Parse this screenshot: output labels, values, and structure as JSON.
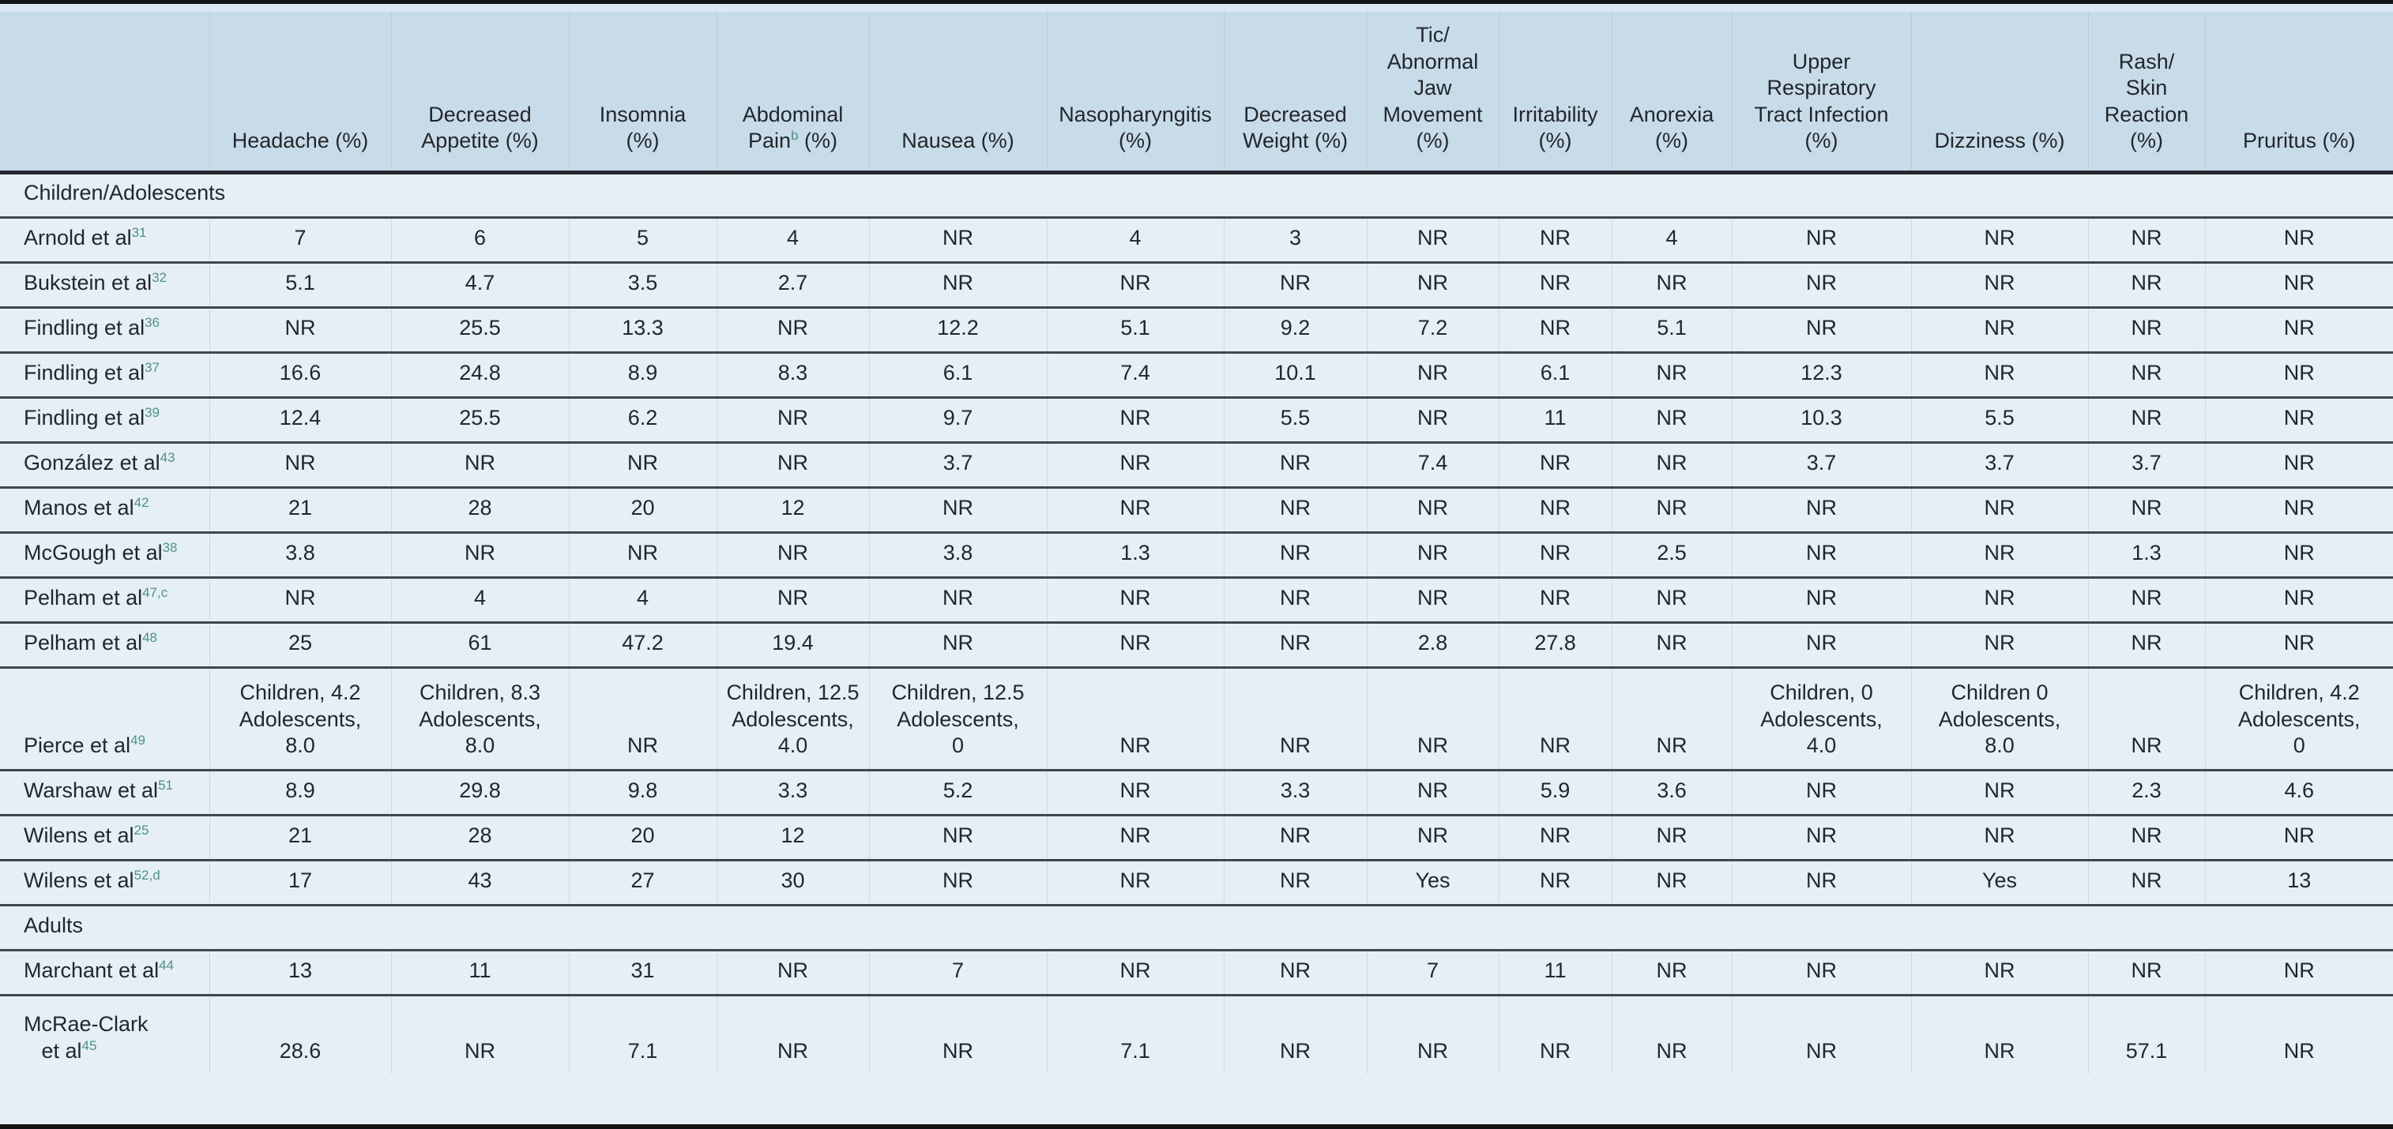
{
  "colors": {
    "header_bg": "#c8dbe9",
    "row_bg": "#e6eff6",
    "strip_bg": "#dae8f2",
    "heavy_rule": "#101417",
    "header_rule": "#23292e",
    "row_rule": "#40474e",
    "vline_header": "#b6cbdb",
    "vline_body": "#cddae5",
    "text_color": "#22272b",
    "superscript_color": "#4f9184"
  },
  "table": {
    "columns": [
      {
        "text": "Headache (%)",
        "sup": "",
        "tail": ""
      },
      {
        "text": "Decreased\nAppetite (%)",
        "sup": "",
        "tail": ""
      },
      {
        "text": "Insomnia\n(%)",
        "sup": "",
        "tail": ""
      },
      {
        "text": "Abdominal\nPain",
        "sup": "b",
        "tail": " (%)"
      },
      {
        "text": "Nausea (%)",
        "sup": "",
        "tail": ""
      },
      {
        "text": "Nasopharyngitis\n(%)",
        "sup": "",
        "tail": ""
      },
      {
        "text": "Decreased\nWeight (%)",
        "sup": "",
        "tail": ""
      },
      {
        "text": "Tic/\nAbnormal\nJaw\nMovement\n(%)",
        "sup": "",
        "tail": ""
      },
      {
        "text": "Irritability\n(%)",
        "sup": "",
        "tail": ""
      },
      {
        "text": "Anorexia\n(%)",
        "sup": "",
        "tail": ""
      },
      {
        "text": "Upper\nRespiratory\nTract Infection\n(%)",
        "sup": "",
        "tail": ""
      },
      {
        "text": "Dizziness (%)",
        "sup": "",
        "tail": ""
      },
      {
        "text": "Rash/\nSkin\nReaction\n(%)",
        "sup": "",
        "tail": ""
      },
      {
        "text": "Pruritus (%)",
        "sup": "",
        "tail": ""
      }
    ],
    "rows": [
      {
        "type": "section",
        "label": "Children/Adolescents"
      },
      {
        "type": "study",
        "study": "Arnold et al",
        "ref": "31",
        "values": [
          "7",
          "6",
          "5",
          "4",
          "NR",
          "4",
          "3",
          "NR",
          "NR",
          "4",
          "NR",
          "NR",
          "NR",
          "NR"
        ]
      },
      {
        "type": "study",
        "study": "Bukstein et al",
        "ref": "32",
        "values": [
          "5.1",
          "4.7",
          "3.5",
          "2.7",
          "NR",
          "NR",
          "NR",
          "NR",
          "NR",
          "NR",
          "NR",
          "NR",
          "NR",
          "NR"
        ]
      },
      {
        "type": "study",
        "study": "Findling et al",
        "ref": "36",
        "values": [
          "NR",
          "25.5",
          "13.3",
          "NR",
          "12.2",
          "5.1",
          "9.2",
          "7.2",
          "NR",
          "5.1",
          "NR",
          "NR",
          "NR",
          "NR"
        ]
      },
      {
        "type": "study",
        "study": "Findling et al",
        "ref": "37",
        "values": [
          "16.6",
          "24.8",
          "8.9",
          "8.3",
          "6.1",
          "7.4",
          "10.1",
          "NR",
          "6.1",
          "NR",
          "12.3",
          "NR",
          "NR",
          "NR"
        ]
      },
      {
        "type": "study",
        "study": "Findling et al",
        "ref": "39",
        "values": [
          "12.4",
          "25.5",
          "6.2",
          "NR",
          "9.7",
          "NR",
          "5.5",
          "NR",
          "11",
          "NR",
          "10.3",
          "5.5",
          "NR",
          "NR"
        ]
      },
      {
        "type": "study",
        "study": "González et al",
        "ref": "43",
        "values": [
          "NR",
          "NR",
          "NR",
          "NR",
          "3.7",
          "NR",
          "NR",
          "7.4",
          "NR",
          "NR",
          "3.7",
          "3.7",
          "3.7",
          "NR"
        ]
      },
      {
        "type": "study",
        "study": "Manos et al",
        "ref": "42",
        "values": [
          "21",
          "28",
          "20",
          "12",
          "NR",
          "NR",
          "NR",
          "NR",
          "NR",
          "NR",
          "NR",
          "NR",
          "NR",
          "NR"
        ]
      },
      {
        "type": "study",
        "study": "McGough et al",
        "ref": "38",
        "values": [
          "3.8",
          "NR",
          "NR",
          "NR",
          "3.8",
          "1.3",
          "NR",
          "NR",
          "NR",
          "2.5",
          "NR",
          "NR",
          "1.3",
          "NR"
        ]
      },
      {
        "type": "study",
        "study": "Pelham et al",
        "ref": "47,c",
        "values": [
          "NR",
          "4",
          "4",
          "NR",
          "NR",
          "NR",
          "NR",
          "NR",
          "NR",
          "NR",
          "NR",
          "NR",
          "NR",
          "NR"
        ]
      },
      {
        "type": "study",
        "study": "Pelham et al",
        "ref": "48",
        "values": [
          "25",
          "61",
          "47.2",
          "19.4",
          "NR",
          "NR",
          "NR",
          "2.8",
          "27.8",
          "NR",
          "NR",
          "NR",
          "NR",
          "NR"
        ]
      },
      {
        "type": "study",
        "study": "Pierce et al",
        "ref": "49",
        "values": [
          "Children, 4.2\nAdolescents,\n8.0",
          "Children, 8.3\nAdolescents,\n8.0",
          "NR",
          "Children, 12.5\nAdolescents,\n4.0",
          "Children, 12.5\nAdolescents,\n0",
          "NR",
          "NR",
          "NR",
          "NR",
          "NR",
          "Children, 0\nAdolescents,\n4.0",
          "Children 0\nAdolescents,\n8.0",
          "NR",
          "Children, 4.2\nAdolescents,\n0"
        ]
      },
      {
        "type": "study",
        "study": "Warshaw et al",
        "ref": "51",
        "values": [
          "8.9",
          "29.8",
          "9.8",
          "3.3",
          "5.2",
          "NR",
          "3.3",
          "NR",
          "5.9",
          "3.6",
          "NR",
          "NR",
          "2.3",
          "4.6"
        ]
      },
      {
        "type": "study",
        "study": "Wilens et al",
        "ref": "25",
        "values": [
          "21",
          "28",
          "20",
          "12",
          "NR",
          "NR",
          "NR",
          "NR",
          "NR",
          "NR",
          "NR",
          "NR",
          "NR",
          "NR"
        ]
      },
      {
        "type": "study",
        "study": "Wilens et al",
        "ref": "52,d",
        "values": [
          "17",
          "43",
          "27",
          "30",
          "NR",
          "NR",
          "NR",
          "Yes",
          "NR",
          "NR",
          "NR",
          "Yes",
          "NR",
          "13"
        ]
      },
      {
        "type": "section",
        "label": "Adults"
      },
      {
        "type": "study",
        "study": "Marchant et al",
        "ref": "44",
        "values": [
          "13",
          "11",
          "31",
          "NR",
          "7",
          "NR",
          "NR",
          "7",
          "11",
          "NR",
          "NR",
          "NR",
          "NR",
          "NR"
        ]
      },
      {
        "type": "study",
        "study": "McRae-Clark\n   et al",
        "ref": "45",
        "values": [
          "28.6",
          "NR",
          "7.1",
          "NR",
          "NR",
          "7.1",
          "NR",
          "NR",
          "NR",
          "NR",
          "NR",
          "NR",
          "57.1",
          "NR"
        ]
      }
    ]
  }
}
